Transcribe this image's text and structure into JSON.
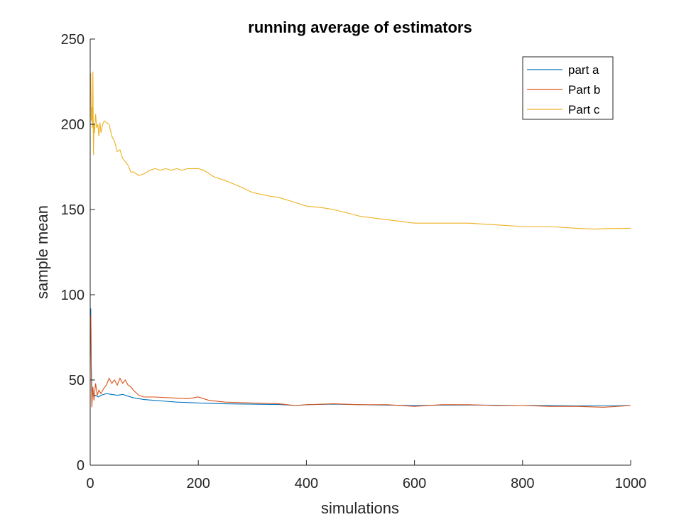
{
  "chart_data": {
    "type": "line",
    "title": "running average of estimators",
    "xlabel": "simulations",
    "ylabel": "sample mean",
    "xlim": [
      0,
      1000
    ],
    "ylim": [
      0,
      250
    ],
    "xticks": [
      0,
      200,
      400,
      600,
      800,
      1000
    ],
    "yticks": [
      0,
      50,
      100,
      150,
      200,
      250
    ],
    "grid": false,
    "legend": "top-right",
    "series": [
      {
        "name": "part a",
        "color": "#0072BD",
        "x": [
          1,
          2,
          3,
          5,
          7,
          10,
          15,
          20,
          30,
          40,
          50,
          60,
          70,
          80,
          100,
          120,
          140,
          160,
          180,
          200,
          250,
          300,
          350,
          380,
          400,
          450,
          500,
          550,
          600,
          650,
          700,
          750,
          800,
          850,
          900,
          950,
          1000
        ],
        "values": [
          92,
          60,
          45,
          42,
          40,
          41,
          40,
          41,
          42,
          41.5,
          41,
          41.5,
          40.5,
          39.5,
          38.5,
          38,
          37.5,
          37,
          36.8,
          36.5,
          36,
          35.8,
          35.6,
          35,
          35.5,
          35.8,
          35.5,
          35.2,
          35,
          35.2,
          35.3,
          35.2,
          35,
          35,
          34.8,
          34.8,
          35
        ]
      },
      {
        "name": "Part b",
        "color": "#D95319",
        "x": [
          1,
          2,
          3,
          5,
          7,
          10,
          13,
          16,
          20,
          25,
          30,
          35,
          40,
          45,
          50,
          55,
          60,
          65,
          70,
          75,
          80,
          90,
          100,
          120,
          150,
          180,
          200,
          220,
          250,
          300,
          350,
          380,
          400,
          450,
          500,
          550,
          600,
          650,
          700,
          750,
          800,
          850,
          900,
          950,
          1000
        ],
        "values": [
          88,
          55,
          34,
          46,
          38,
          48,
          41,
          44,
          42,
          45,
          47,
          51,
          48,
          50,
          47,
          51,
          48,
          50,
          47,
          46,
          44,
          41,
          40,
          40,
          39.5,
          39,
          40,
          38,
          37,
          36.5,
          36,
          35,
          35.5,
          36,
          35.5,
          35.5,
          34.5,
          35.5,
          35.5,
          35,
          35,
          34.5,
          34.5,
          34,
          35
        ]
      },
      {
        "name": "Part c",
        "color": "#EDB120",
        "x": [
          1,
          2,
          3,
          4,
          5,
          6,
          7,
          8,
          10,
          12,
          14,
          16,
          18,
          20,
          23,
          26,
          30,
          35,
          40,
          45,
          50,
          55,
          60,
          65,
          70,
          75,
          80,
          90,
          100,
          110,
          120,
          130,
          140,
          150,
          160,
          170,
          180,
          190,
          200,
          210,
          230,
          250,
          280,
          300,
          330,
          350,
          380,
          400,
          430,
          450,
          500,
          550,
          600,
          650,
          700,
          750,
          800,
          850,
          900,
          930,
          950,
          1000
        ],
        "values": [
          230,
          202,
          210,
          198,
          231,
          182,
          200,
          195,
          206,
          198,
          200,
          193,
          201,
          195,
          200,
          202,
          201,
          200,
          193,
          190,
          184,
          185,
          180,
          178,
          176,
          172,
          172,
          170,
          171,
          173,
          174,
          173,
          174,
          173,
          174,
          173,
          174,
          174,
          174,
          173,
          169,
          167,
          163,
          160,
          158,
          157,
          154,
          152,
          151,
          150,
          146,
          144,
          142,
          142,
          142,
          141,
          140,
          140,
          139,
          138.5,
          138.8,
          139
        ]
      }
    ]
  }
}
